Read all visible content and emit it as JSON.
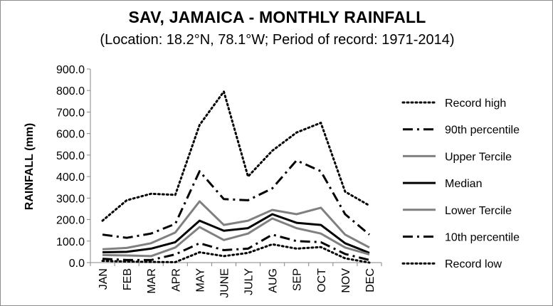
{
  "chart_data": {
    "type": "line",
    "title": "SAV, JAMAICA - MONTHLY RAINFALL",
    "subtitle": "(Location: 18.2°N, 78.1°W; Period of record: 1971-2014)",
    "ylabel": "RAINFALL (mm)",
    "xlabel": "",
    "ylim": [
      0,
      900
    ],
    "yticks": [
      "0.0",
      "100.0",
      "200.0",
      "300.0",
      "400.0",
      "500.0",
      "600.0",
      "700.0",
      "800.0",
      "900.0"
    ],
    "categories": [
      "JAN",
      "FEB",
      "MAR",
      "APR",
      "MAY",
      "JUNE",
      "JULY",
      "AUG",
      "SEP",
      "OCT",
      "NOV",
      "DEC"
    ],
    "grid": false,
    "legend_position": "right",
    "series": [
      {
        "name": "Record high",
        "color": "#000000",
        "style": "dotted",
        "values": [
          195,
          290,
          320,
          315,
          640,
          795,
          400,
          520,
          605,
          650,
          330,
          265
        ]
      },
      {
        "name": "90th percentile",
        "color": "#000000",
        "style": "dashdot",
        "values": [
          130,
          115,
          135,
          180,
          425,
          295,
          290,
          345,
          475,
          425,
          225,
          130
        ]
      },
      {
        "name": "Upper Tercile",
        "color": "#808080",
        "style": "solid",
        "values": [
          62,
          68,
          90,
          140,
          285,
          175,
          195,
          245,
          225,
          255,
          130,
          70
        ]
      },
      {
        "name": "Median",
        "color": "#000000",
        "style": "solid",
        "values": [
          48,
          50,
          65,
          95,
          195,
          148,
          160,
          225,
          185,
          175,
          90,
          45
        ]
      },
      {
        "name": "Lower Tercile",
        "color": "#808080",
        "style": "solid",
        "values": [
          35,
          33,
          30,
          70,
          165,
          105,
          135,
          205,
          160,
          135,
          70,
          38
        ]
      },
      {
        "name": "10th percentile",
        "color": "#000000",
        "style": "dashdot",
        "values": [
          18,
          12,
          12,
          38,
          90,
          58,
          65,
          130,
          100,
          95,
          40,
          12
        ]
      },
      {
        "name": "Record low",
        "color": "#000000",
        "style": "dotted",
        "values": [
          8,
          5,
          3,
          2,
          48,
          30,
          45,
          85,
          65,
          72,
          20,
          0
        ]
      }
    ]
  }
}
